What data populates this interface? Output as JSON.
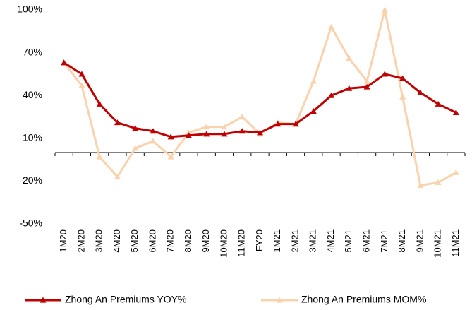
{
  "chart_data": {
    "type": "line",
    "categories": [
      "1M20",
      "2M20",
      "3M20",
      "4M20",
      "5M20",
      "6M20",
      "7M20",
      "8M20",
      "9M20",
      "10M20",
      "11M20",
      "FY20",
      "1M21",
      "2M21",
      "3M21",
      "4M21",
      "5M21",
      "6M21",
      "7M21",
      "8M21",
      "9M21",
      "10M21",
      "11M21"
    ],
    "series": [
      {
        "name": "Zhong An Premiums YOY%",
        "color": "#c00000",
        "values": [
          63,
          55,
          34,
          21,
          17,
          15,
          11,
          12,
          13,
          13,
          15,
          14,
          20,
          20,
          29,
          40,
          45,
          46,
          55,
          52,
          42,
          34,
          28
        ]
      },
      {
        "name": "Zhong An Premiums MOM%",
        "color": "#fad3ae",
        "values": [
          63,
          47,
          -3,
          -17,
          3,
          8,
          -3,
          14,
          18,
          18,
          25,
          13,
          21,
          20,
          50,
          88,
          66,
          50,
          100,
          39,
          -23,
          -21,
          -14
        ]
      }
    ],
    "ylim": [
      -50,
      100
    ],
    "yticks": [
      {
        "value": -50,
        "label": "-50%"
      },
      {
        "value": -20,
        "label": "-20%"
      },
      {
        "value": 10,
        "label": "10%"
      },
      {
        "value": 40,
        "label": "40%"
      },
      {
        "value": 70,
        "label": "70%"
      },
      {
        "value": 100,
        "label": "100%"
      }
    ],
    "grid": false,
    "legend": "bottom"
  }
}
